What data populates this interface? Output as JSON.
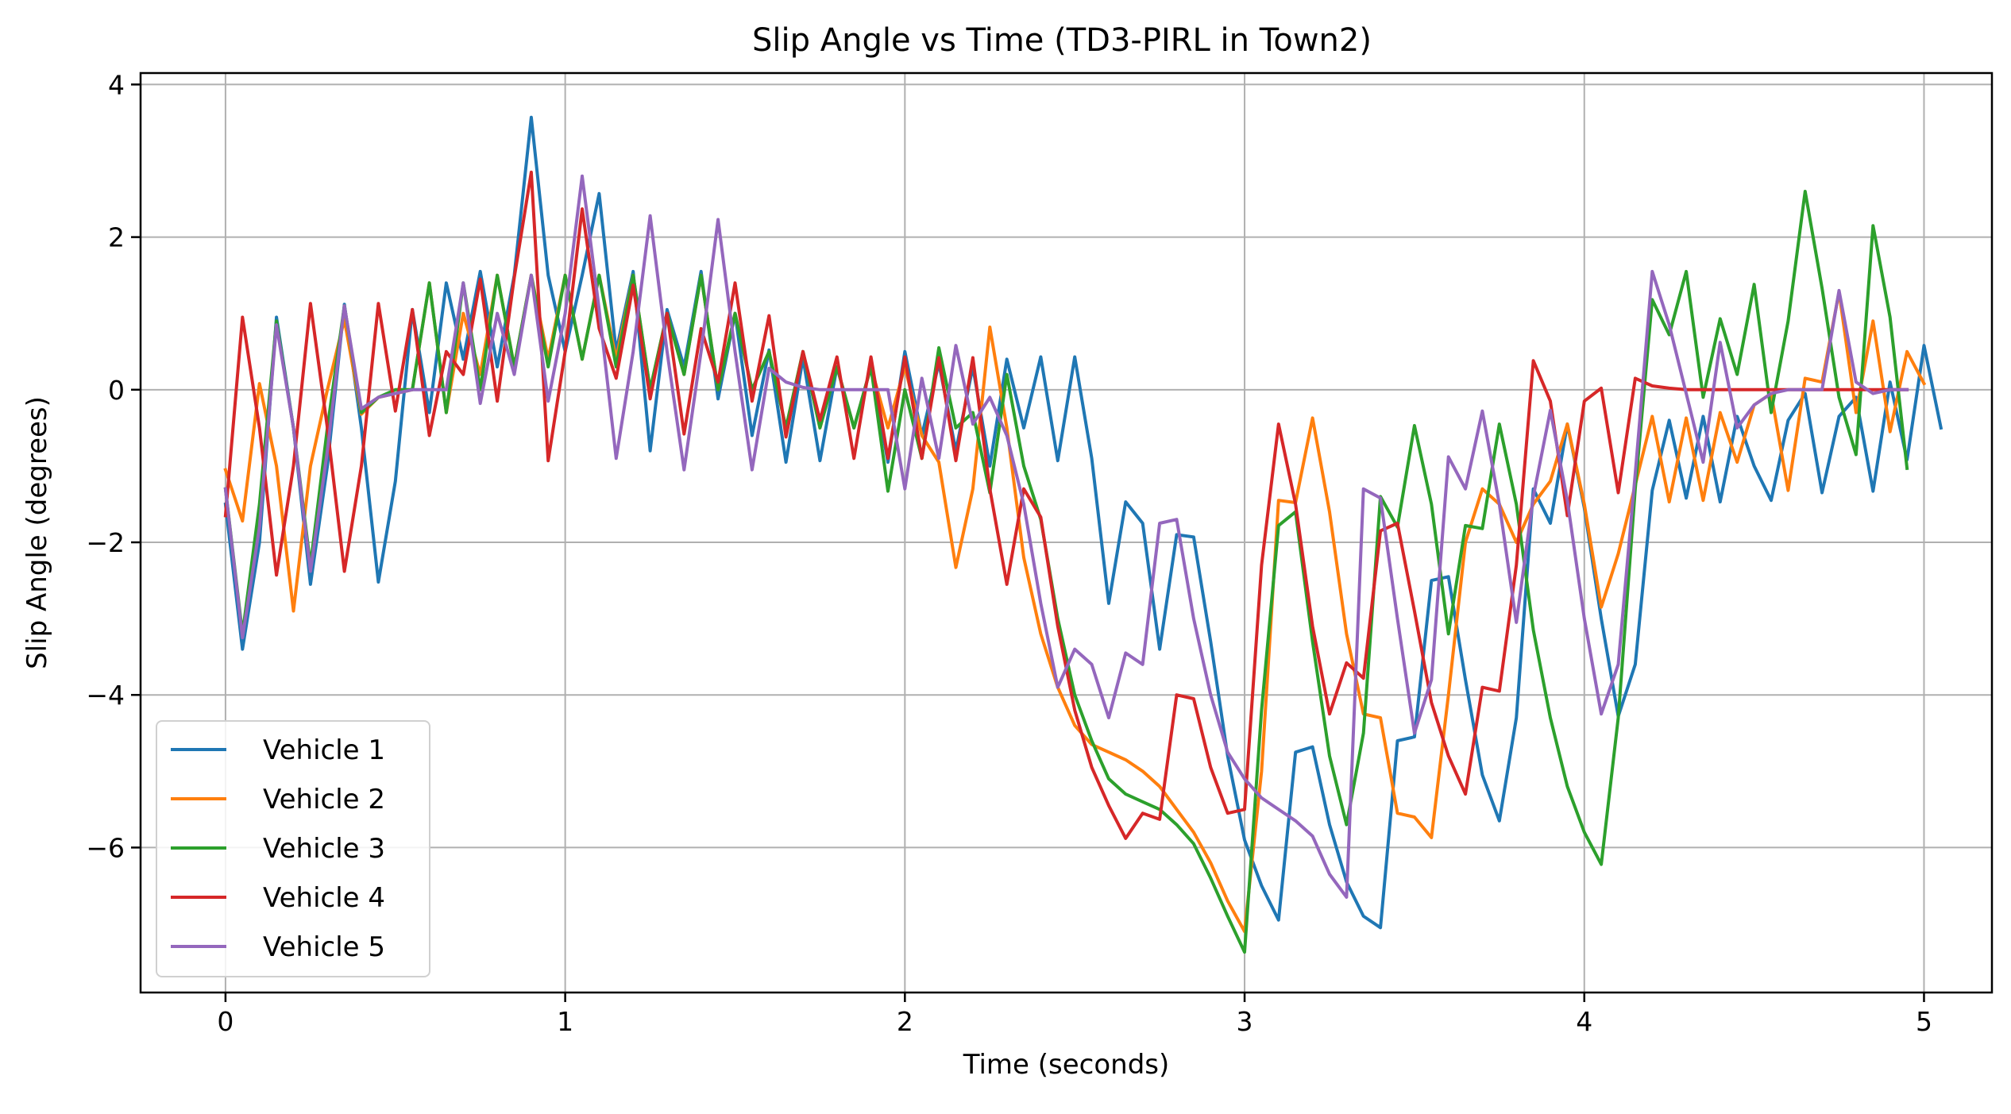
{
  "chart_data": {
    "type": "line",
    "title": "Slip Angle vs Time (TD3-PIRL in Town2)",
    "xlabel": "Time (seconds)",
    "ylabel": "Slip Angle (degrees)",
    "xlim": [
      -0.25,
      5.2
    ],
    "ylim": [
      -7.9,
      4.15
    ],
    "xticks": [
      0,
      1,
      2,
      3,
      4,
      5
    ],
    "yticks": [
      -6,
      -4,
      -2,
      0,
      2,
      4
    ],
    "grid": true,
    "legend_position": "lower-left",
    "x_step": 0.05,
    "series": [
      {
        "name": "Vehicle 1",
        "color": "#1f77b4",
        "values": [
          -1.5,
          -3.4,
          -2.0,
          0.95,
          -0.5,
          -2.55,
          -1.0,
          1.12,
          -0.5,
          -2.52,
          -1.2,
          1.05,
          -0.3,
          1.4,
          0.4,
          1.55,
          0.3,
          1.5,
          3.57,
          1.5,
          0.5,
          1.5,
          2.57,
          0.5,
          1.55,
          -0.8,
          1.05,
          0.3,
          1.55,
          -0.12,
          1.0,
          -0.6,
          0.52,
          -0.95,
          0.42,
          -0.93,
          0.3,
          -0.5,
          0.3,
          -0.95,
          0.5,
          -0.6,
          0.35,
          -0.8,
          0.3,
          -1.0,
          0.4,
          -0.5,
          0.43,
          -0.93,
          0.43,
          -0.9,
          -2.8,
          -1.47,
          -1.75,
          -3.4,
          -1.9,
          -1.93,
          -3.3,
          -4.8,
          -5.9,
          -6.5,
          -6.95,
          -4.75,
          -4.68,
          -5.7,
          -6.45,
          -6.9,
          -7.05,
          -4.6,
          -4.55,
          -2.5,
          -2.45,
          -3.8,
          -5.05,
          -5.65,
          -4.3,
          -1.3,
          -1.75,
          -0.45,
          -1.55,
          -3.0,
          -4.28,
          -3.6,
          -1.32,
          -0.4,
          -1.42,
          -0.35,
          -1.47,
          -0.35,
          -1.0,
          -1.45,
          -0.4,
          -0.05,
          -1.35,
          -0.35,
          -0.1,
          -1.33,
          0.1,
          -0.92,
          0.58,
          -0.5
        ]
      },
      {
        "name": "Vehicle 2",
        "color": "#ff7f0e",
        "values": [
          -1.05,
          -1.72,
          0.08,
          -1.0,
          -2.9,
          -1.0,
          0.0,
          0.92,
          -0.32,
          -0.1,
          -0.05,
          0.0,
          1.4,
          -0.3,
          1.0,
          0.2,
          1.5,
          0.3,
          1.5,
          0.4,
          1.5,
          0.4,
          1.5,
          0.4,
          1.5,
          0.0,
          1.0,
          0.2,
          1.5,
          0.0,
          1.0,
          0.0,
          0.5,
          -0.5,
          0.5,
          -0.5,
          0.3,
          -0.5,
          0.3,
          -0.5,
          0.3,
          -0.6,
          -0.95,
          -2.33,
          -1.3,
          0.82,
          -0.5,
          -2.2,
          -3.2,
          -3.9,
          -4.4,
          -4.65,
          -4.75,
          -4.85,
          -5.0,
          -5.2,
          -5.5,
          -5.8,
          -6.2,
          -6.7,
          -7.1,
          -5.0,
          -1.45,
          -1.48,
          -0.37,
          -1.6,
          -3.2,
          -4.25,
          -4.3,
          -5.55,
          -5.6,
          -5.87,
          -4.0,
          -2.0,
          -1.3,
          -1.5,
          -2.0,
          -1.5,
          -1.2,
          -0.45,
          -1.5,
          -2.85,
          -2.15,
          -1.25,
          -0.35,
          -1.47,
          -0.37,
          -1.45,
          -0.3,
          -0.95,
          -0.2,
          -0.05,
          -1.32,
          0.15,
          0.1,
          1.28,
          -0.3,
          0.9,
          -0.55,
          0.5,
          0.08
        ]
      },
      {
        "name": "Vehicle 3",
        "color": "#2ca02c",
        "values": [
          -1.3,
          -3.2,
          -1.5,
          0.9,
          -0.5,
          -2.3,
          -0.5,
          1.1,
          -0.3,
          -0.1,
          0.0,
          0.0,
          1.4,
          -0.3,
          1.4,
          0.0,
          1.5,
          0.3,
          1.5,
          0.3,
          1.5,
          0.4,
          1.5,
          0.3,
          1.5,
          0.0,
          1.0,
          0.2,
          1.5,
          0.0,
          1.0,
          0.0,
          0.5,
          -0.5,
          0.5,
          -0.5,
          0.3,
          -0.5,
          0.3,
          -1.33,
          0.0,
          -0.9,
          0.55,
          -0.5,
          -0.3,
          -1.35,
          0.2,
          -1.0,
          -1.7,
          -3.0,
          -4.0,
          -4.6,
          -5.1,
          -5.3,
          -5.4,
          -5.5,
          -5.7,
          -5.95,
          -6.4,
          -6.9,
          -7.37,
          -4.2,
          -1.78,
          -1.6,
          -3.3,
          -4.8,
          -5.7,
          -4.5,
          -1.4,
          -1.8,
          -0.47,
          -1.5,
          -3.2,
          -1.78,
          -1.82,
          -0.45,
          -1.5,
          -3.15,
          -4.3,
          -5.2,
          -5.8,
          -6.22,
          -4.3,
          -1.3,
          1.18,
          0.72,
          1.55,
          -0.1,
          0.93,
          0.2,
          1.38,
          -0.3,
          0.9,
          2.6,
          1.33,
          -0.1,
          -0.85,
          2.15,
          0.95,
          -1.03
        ]
      },
      {
        "name": "Vehicle 4",
        "color": "#d62728",
        "values": [
          -1.65,
          0.95,
          -0.5,
          -2.43,
          -1.0,
          1.13,
          -0.5,
          -2.38,
          -1.0,
          1.13,
          -0.28,
          1.05,
          -0.6,
          0.5,
          0.2,
          1.45,
          -0.15,
          1.47,
          2.85,
          -0.93,
          0.5,
          2.37,
          0.8,
          0.15,
          1.37,
          -0.12,
          1.0,
          -0.58,
          0.8,
          0.1,
          1.4,
          -0.15,
          0.97,
          -0.62,
          0.5,
          -0.4,
          0.43,
          -0.9,
          0.43,
          -0.9,
          0.43,
          -0.9,
          0.42,
          -0.93,
          0.42,
          -1.3,
          -2.55,
          -1.3,
          -1.67,
          -3.1,
          -4.2,
          -4.95,
          -5.45,
          -5.88,
          -5.55,
          -5.63,
          -4.0,
          -4.05,
          -4.95,
          -5.55,
          -5.5,
          -2.3,
          -0.45,
          -1.5,
          -3.1,
          -4.25,
          -3.58,
          -3.78,
          -1.85,
          -1.75,
          -2.9,
          -4.1,
          -4.8,
          -5.3,
          -3.9,
          -3.95,
          -2.3,
          0.38,
          -0.15,
          -1.65,
          -0.15,
          0.02,
          -1.35,
          0.15,
          0.05,
          0.02,
          0.0,
          0.0,
          0.0,
          0.0,
          0.0,
          0.0,
          0.0,
          0.0,
          0.0,
          0.0,
          0.0,
          0.0,
          0.0,
          0.0
        ]
      },
      {
        "name": "Vehicle 5",
        "color": "#9467bd",
        "values": [
          -1.3,
          -3.25,
          -1.8,
          0.85,
          -0.5,
          -2.38,
          -0.8,
          1.1,
          -0.25,
          -0.1,
          -0.05,
          0.0,
          0.0,
          0.0,
          1.4,
          -0.18,
          1.0,
          0.2,
          1.5,
          -0.15,
          1.0,
          2.8,
          1.05,
          -0.9,
          0.5,
          2.28,
          0.5,
          -1.05,
          0.5,
          2.23,
          0.5,
          -1.05,
          0.28,
          0.1,
          0.03,
          0.0,
          0.0,
          0.0,
          0.0,
          0.0,
          -1.3,
          0.15,
          -0.9,
          0.58,
          -0.45,
          -0.1,
          -0.6,
          -1.5,
          -2.8,
          -3.9,
          -3.4,
          -3.6,
          -4.3,
          -3.45,
          -3.6,
          -1.75,
          -1.7,
          -3.0,
          -4.0,
          -4.75,
          -5.1,
          -5.35,
          -5.5,
          -5.65,
          -5.85,
          -6.35,
          -6.65,
          -1.3,
          -1.42,
          -3.0,
          -4.5,
          -3.8,
          -0.88,
          -1.3,
          -0.28,
          -1.5,
          -3.05,
          -1.4,
          -0.27,
          -1.45,
          -3.0,
          -4.25,
          -3.6,
          -1.1,
          1.55,
          0.85,
          -0.05,
          -0.95,
          0.62,
          -0.5,
          -0.2,
          -0.05,
          0.0,
          0.0,
          0.0,
          1.3,
          0.1,
          -0.05,
          0.0,
          0.0
        ]
      }
    ]
  }
}
